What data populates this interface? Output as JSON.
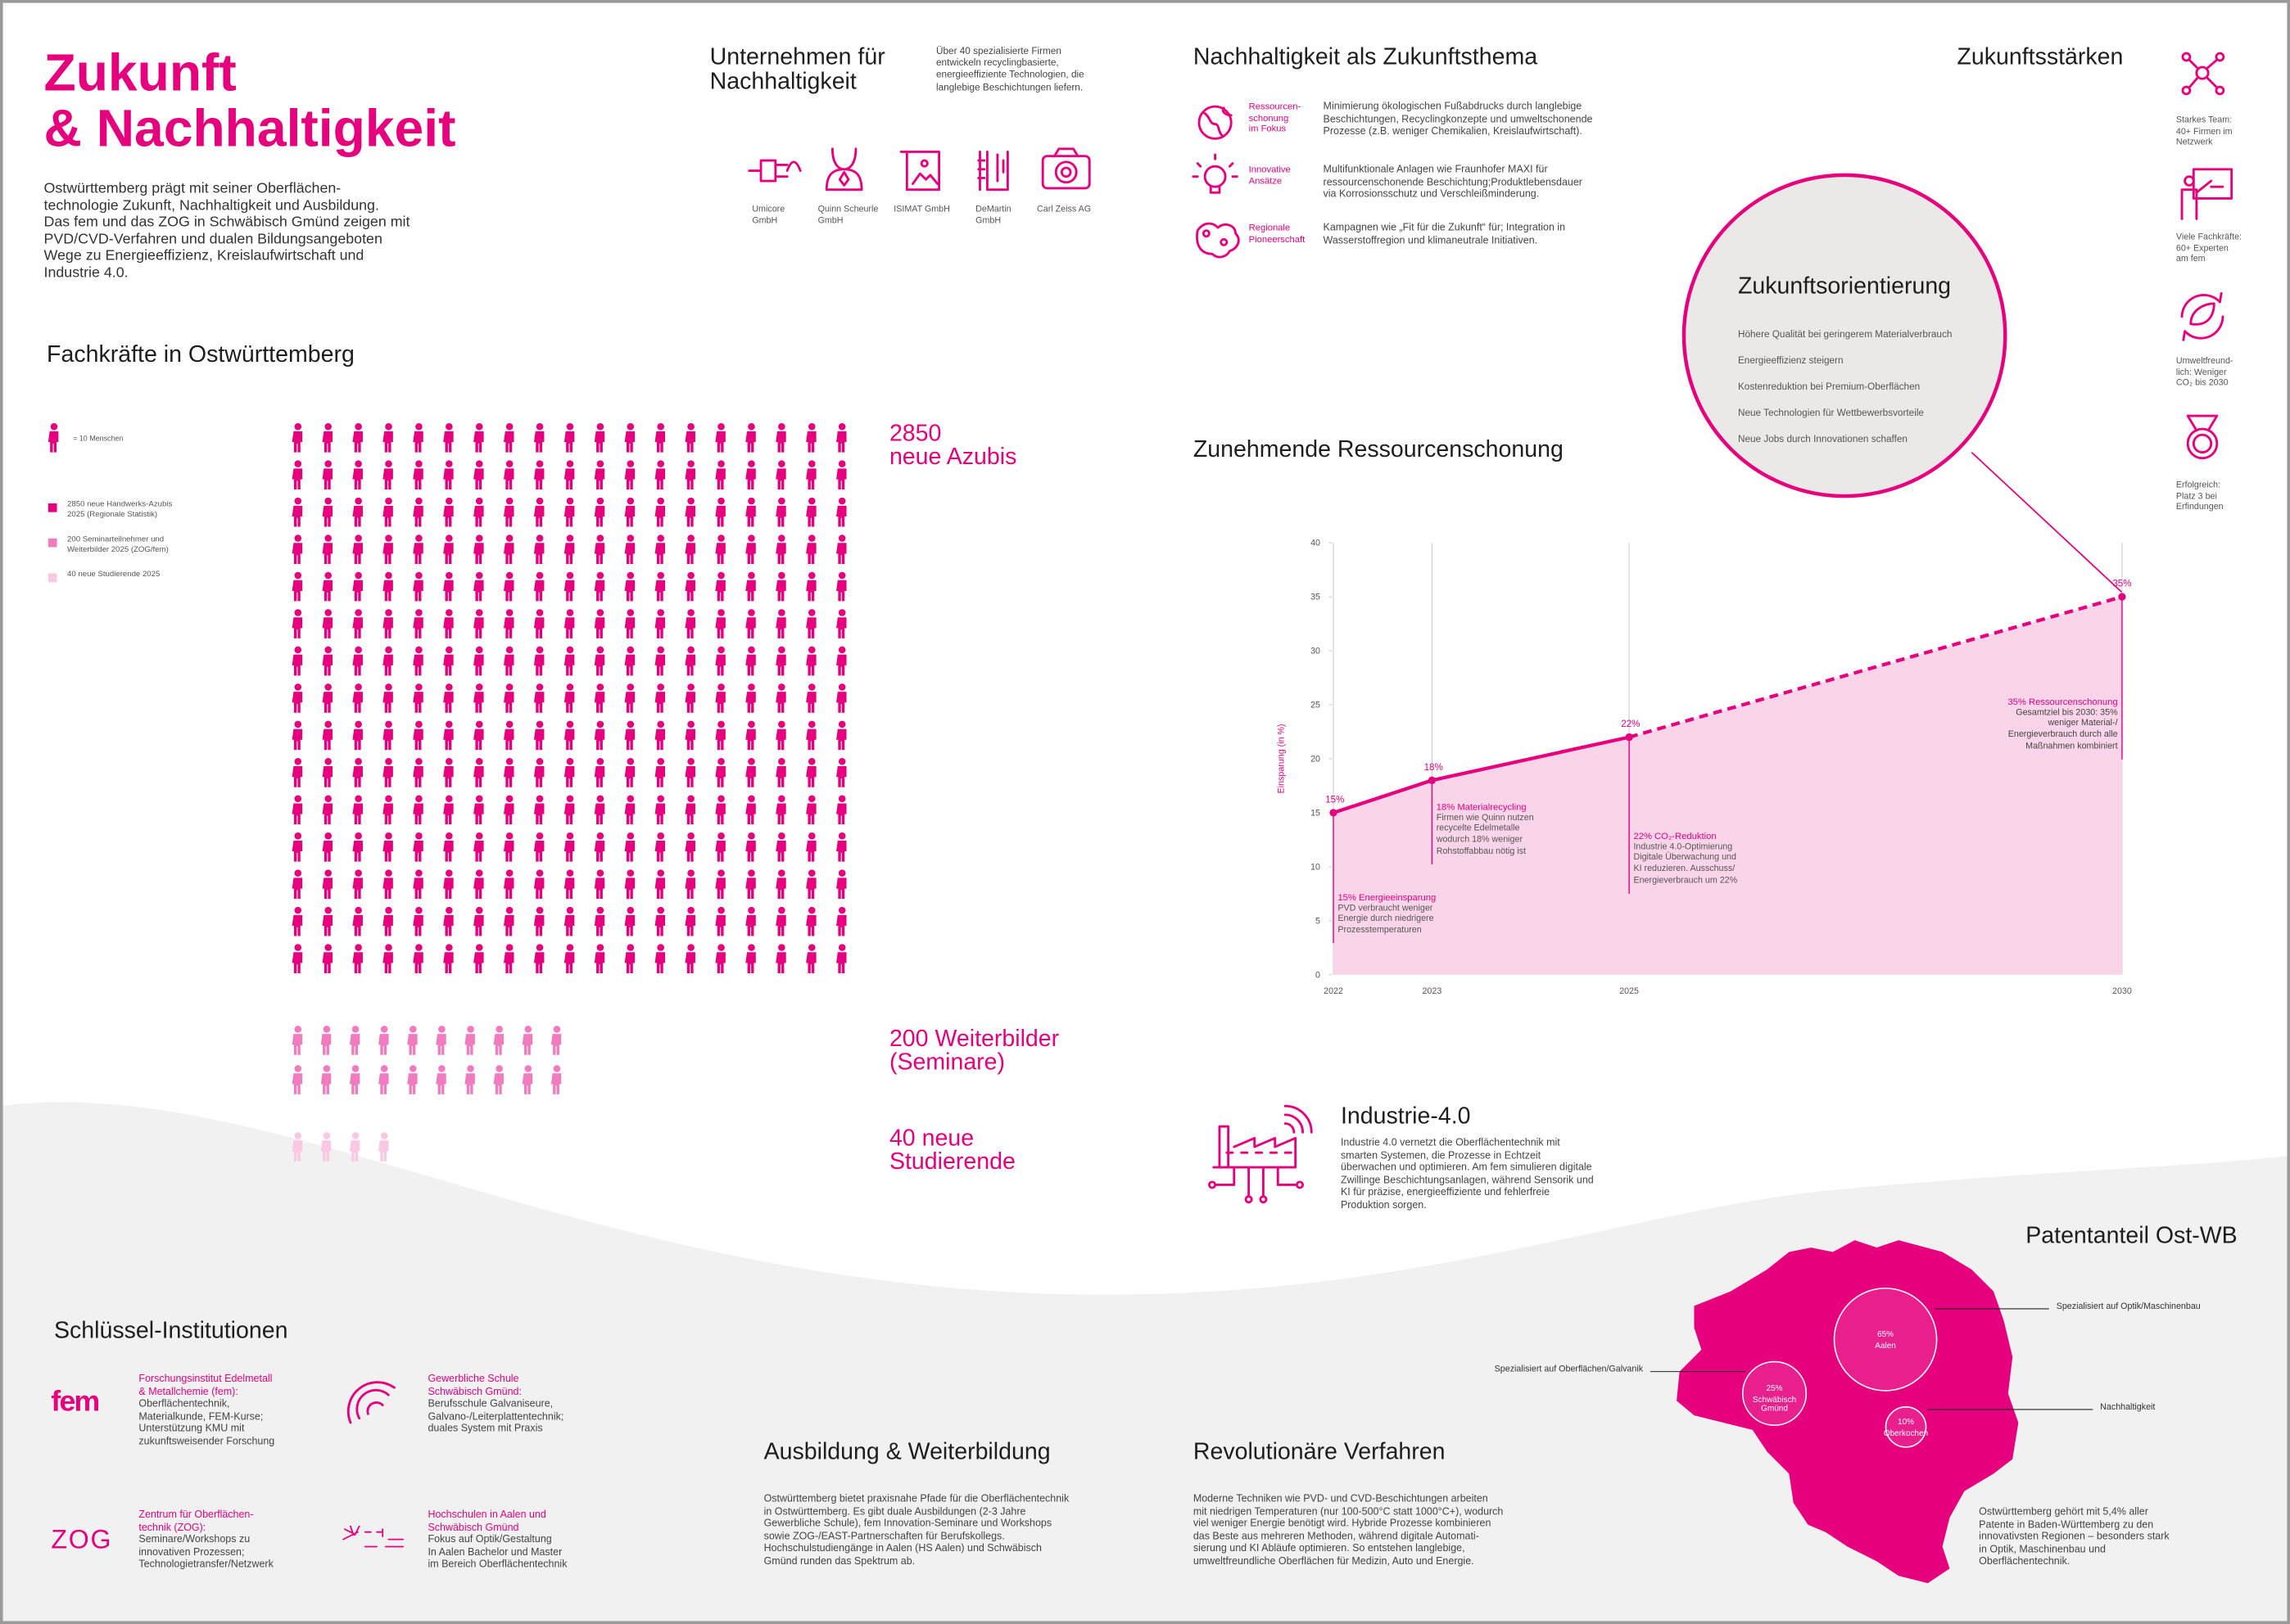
{
  "header": {
    "title": [
      "Zukunft",
      "& Nachhaltigkeit"
    ],
    "intro": [
      "Ostwürttemberg prägt mit seiner Oberflächen-",
      "technologie Zukunft, Nachhaltigkeit und Ausbildung.",
      "Das fem und das ZOG in Schwäbisch Gmünd zeigen mit",
      "PVD/CVD-Verfahren und dualen Bildungsangeboten",
      "Wege zu Energieeffizienz, Kreislaufwirtschaft und",
      "Industrie 4.0."
    ]
  },
  "companies": {
    "title": [
      "Unternehmen für",
      "Nachhaltigkeit"
    ],
    "text": [
      "Über 40 spezialisierte Firmen",
      "entwickeln recyclingbasierte,",
      "energieeffiziente Technologien, die",
      "langlebige Beschichtungen liefern."
    ],
    "items": [
      [
        "Umicore",
        "GmbH"
      ],
      [
        "Quinn Scheurle",
        "GmbH"
      ],
      [
        "ISIMAT GmbH"
      ],
      [
        "DeMartin",
        "GmbH"
      ],
      [
        "Carl Zeiss AG"
      ]
    ]
  },
  "sustainability": {
    "title": "Nachhaltigkeit als Zukunftsthema",
    "items": [
      {
        "label": [
          "Ressourcen-",
          "schonung",
          "im Fokus"
        ],
        "text": [
          "Minimierung ökologischen Fußabdrucks durch langlebige",
          "Beschichtungen, Recyclingkonzepte und umweltschonende",
          "Prozesse (z.B. weniger Chemikalien, Kreislaufwirtschaft)."
        ]
      },
      {
        "label": [
          "Innovative",
          "Ansätze"
        ],
        "text": [
          "Multifunktionale Anlagen wie Fraunhofer MAXI für",
          "ressourcenschonende Beschichtung;Produktlebensdauer",
          "via Korrosionsschutz und Verschleißminderung."
        ]
      },
      {
        "label": [
          "Regionale",
          "Pioneerschaft"
        ],
        "text": [
          "Kampagnen wie „Fit für die Zukunft“ für; Integration in",
          "Wasserstoffregion und klimaneutrale Initiativen."
        ]
      }
    ]
  },
  "strengths": {
    "title": "Zukunftsstärken",
    "items": [
      [
        "Starkes Team:",
        "40+ Firmen im",
        "Netzwerk"
      ],
      [
        "Viele Fachkräfte:",
        "60+ Experten",
        "am fem"
      ],
      [
        "Umweltfreund-",
        "lich: Weniger",
        "CO₂ bis 2030"
      ],
      [
        "Erfolgreich:",
        "Platz 3 bei",
        "Erfindungen"
      ]
    ]
  },
  "future": {
    "title": "Zukunftsorientierung",
    "items": [
      "Höhere Qualität bei geringerem Materialverbrauch",
      "Energieeffizienz steigern",
      "Kostenreduktion bei Premium-Oberflächen",
      "Neue Technologien für Wettbewerbsvorteile",
      "Neue Jobs durch Innovationen schaffen"
    ]
  },
  "chart_data": [
    {
      "type": "pictogram",
      "title": "Fachkräfte in Ostwürttemberg",
      "unit": {
        "value": 10,
        "label": "= 10 Menschen"
      },
      "legend": [
        [
          "2850 neue Handwerks-Azubis",
          "2025 (Regionale Statistik)"
        ],
        [
          "200 Seminarteilnehmer und",
          "Weiterbilder 2025 (ZOG/fem)"
        ],
        [
          "40 neue Studierende 2025"
        ]
      ],
      "values": [
        2850,
        200,
        40
      ],
      "value_labels": [
        [
          "2850",
          "neue Azubis"
        ],
        [
          "200 Weiterbilder",
          "(Seminare)"
        ],
        [
          "40 neue",
          "Studierende"
        ]
      ],
      "colors": [
        "#e6007e",
        "#f07cbf",
        "#f9c8e3"
      ]
    },
    {
      "type": "line",
      "title": "Zunehmende Ressourcenschonung",
      "y_label": "Einsparung (in %)",
      "x": [
        2022,
        2023,
        2025,
        2030
      ],
      "values": [
        15,
        18,
        22,
        35
      ],
      "value_labels": [
        "15%",
        "18%",
        "22%",
        "35%"
      ],
      "color": "#e6007e",
      "area_color": "#fad4e9",
      "segment_styles": [
        "solid",
        "solid",
        "dashed"
      ],
      "xlim": [
        2022,
        2030
      ],
      "ylim": [
        0,
        40
      ],
      "xticks": [
        2022,
        2023,
        2025,
        2030
      ],
      "yticks": [
        0,
        5,
        10,
        15,
        20,
        25,
        30,
        35,
        40
      ],
      "grid": "x",
      "annotations": [
        {
          "title": "15% Energieeinsparung",
          "lines": [
            "PVD verbraucht weniger",
            "Energie durch niedrigere",
            "Prozesstemperaturen"
          ]
        },
        {
          "title": "18% Materialrecycling",
          "lines": [
            "Firmen wie Quinn nutzen",
            "recycelte Edelmetalle",
            "wodurch 18% weniger",
            "Rohstoffabbau nötig ist"
          ]
        },
        {
          "title": "22% CO₂-Reduktion",
          "lines": [
            "Industrie 4.0-Optimierung",
            "Digitale Überwachung und",
            "KI reduzieren. Ausschuss/",
            "Energieverbrauch um 22%"
          ]
        },
        {
          "title": "35% Ressourcenschonung",
          "lines": [
            "Gesamtziel bis 2030: 35%",
            "weniger Material-/",
            "Energieverbrauch durch alle",
            "Maßnahmen kombiniert"
          ]
        }
      ]
    },
    {
      "type": "bubble-map",
      "title": "Patentanteil Ost-WB",
      "categories": [
        "Aalen",
        "Schwäbisch Gmünd",
        "Oberkochen"
      ],
      "values": [
        65,
        25,
        10
      ],
      "value_labels": [
        "65%",
        "25%",
        "10%"
      ],
      "callouts": [
        "Spezialisiert auf Optik/Maschinenbau",
        "Spezialisiert auf Oberflächen/Galvanik",
        "Nachhaltigkeit"
      ],
      "color": "#e6007e",
      "text": [
        "Ostwürttemberg gehört mit 5,4% aller",
        "Patente in Baden-Württemberg zu den",
        "innovativsten Regionen – besonders stark",
        "in Optik, Maschinenbau und",
        "Oberflächentechnik."
      ]
    }
  ],
  "industry": {
    "title": "Industrie-4.0",
    "text": [
      "Industrie 4.0 vernetzt die Oberflächentechnik mit",
      "smarten Systemen, die Prozesse in Echtzeit",
      "überwachen und optimieren. Am fem simulieren digitale",
      "Zwillinge Beschichtungsanlagen, während Sensorik und",
      "KI für präzise, energieeffiziente und fehlerfreie",
      "Produktion sorgen."
    ]
  },
  "institutions": {
    "title": "Schlüssel-Institutionen",
    "items": [
      {
        "logo": "fem",
        "name": [
          "Forschungsinstitut Edelmetall",
          "& Metallchemie (fem):"
        ],
        "text": [
          "Oberflächentechnik,",
          "Materialkunde, FEM-Kurse;",
          "Unterstützung KMU mit",
          "zukunftsweisender Forschung"
        ]
      },
      {
        "name": [
          "Gewerbliche Schule",
          "Schwäbisch Gmünd:"
        ],
        "text": [
          "Berufsschule Galvaniseure,",
          "Galvano-/Leiterplattentechnik;",
          "duales System mit Praxis"
        ]
      },
      {
        "logo": "ZOG",
        "name": [
          "Zentrum für Oberflächen-",
          "technik (ZOG):"
        ],
        "text": [
          "Seminare/Workshops zu",
          "innovativen Prozessen;",
          "Technologietransfer/Netzwerk"
        ]
      },
      {
        "name": [
          "Hochschulen in Aalen und",
          "Schwäbisch Gmünd"
        ],
        "text": [
          "Fokus auf Optik/Gestaltung",
          "In Aalen Bachelor und Master",
          "im Bereich Oberflächentechnik"
        ]
      }
    ]
  },
  "education": {
    "title": "Ausbildung & Weiterbildung",
    "text": [
      "Ostwürttemberg bietet praxisnahe Pfade für die Oberflächentechnik",
      "in Ostwürttemberg. Es gibt duale Ausbildungen (2-3 Jahre",
      "Gewerbliche Schule), fem Innovation-Seminare und Workshops",
      "sowie ZOG-/EAST-Partnerschaften für Berufskollegs.",
      "Hochschulstudiengänge in Aalen (HS Aalen) und Schwäbisch",
      "Gmünd runden das Spektrum ab."
    ]
  },
  "processes": {
    "title": "Revolutionäre Verfahren",
    "text": [
      "Moderne Techniken wie PVD- und CVD-Beschichtungen arbeiten",
      "mit niedrigen Temperaturen (nur 100-500°C statt 1000°C+), wodurch",
      "viel weniger Energie benötigt wird. Hybride Prozesse kombinieren",
      "das Beste aus mehreren Methoden, während digitale Automati-",
      "sierung und KI Abläufe optimieren. So entstehen langlebige,",
      "umweltfreundliche Oberflächen für Medizin, Auto und Energie."
    ]
  }
}
